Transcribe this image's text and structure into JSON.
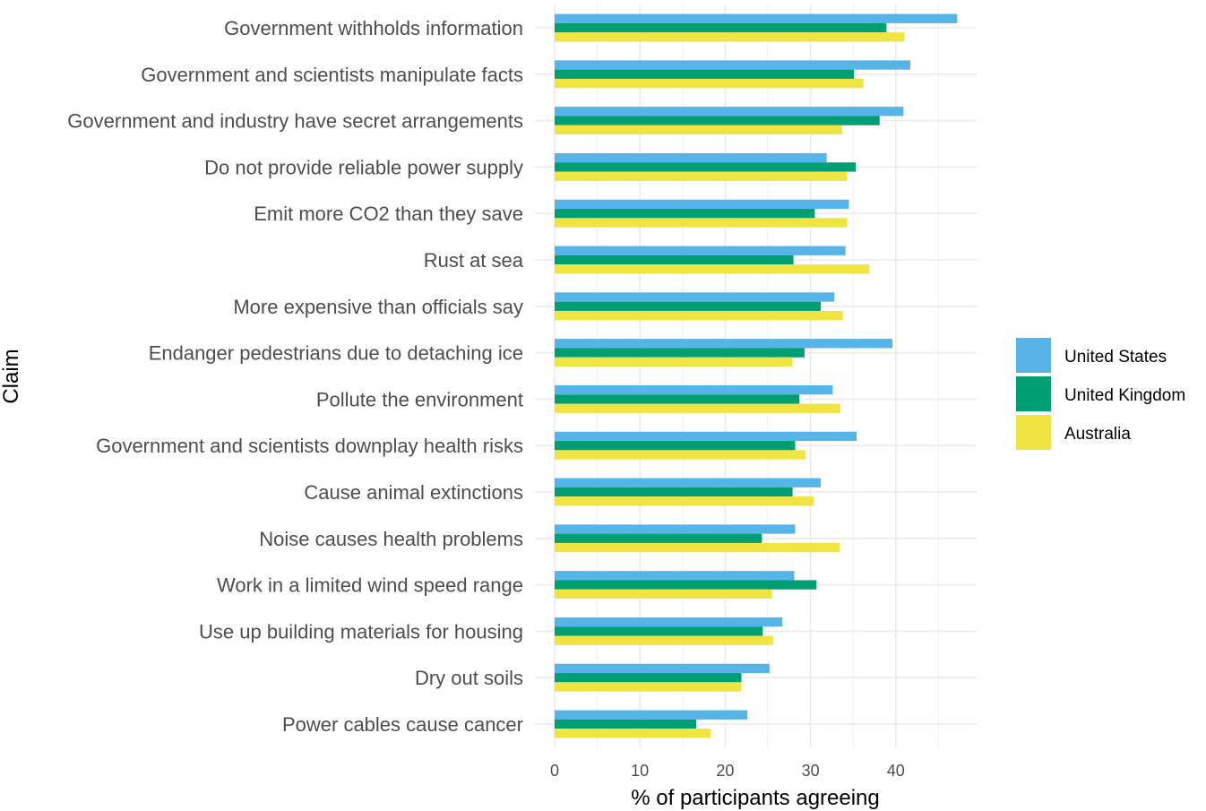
{
  "chart_data": {
    "type": "bar",
    "orientation": "horizontal",
    "xlabel": "% of participants agreeing",
    "ylabel": "Claim",
    "xlim": [
      0,
      49.5
    ],
    "x_ticks": [
      "0",
      "10",
      "20",
      "30",
      "40"
    ],
    "categories": [
      "Government withholds information",
      "Government and scientists manipulate facts",
      "Government and industry have secret arrangements",
      "Do not provide reliable power supply",
      "Emit more CO2 than they save",
      "Rust at sea",
      "More expensive than officials say",
      "Endanger pedestrians due to detaching ice",
      "Pollute the environment",
      "Government and scientists downplay health risks",
      "Cause animal extinctions",
      "Noise causes health problems",
      "Work in a limited wind speed range",
      "Use up building materials for housing",
      "Dry out soils",
      "Power cables cause cancer"
    ],
    "series": [
      {
        "name": "United States",
        "color": "#56B4E9",
        "values": [
          47.2,
          41.7,
          40.9,
          31.9,
          34.5,
          34.1,
          32.8,
          39.6,
          32.6,
          35.4,
          31.2,
          28.2,
          28.1,
          26.7,
          25.2,
          22.6
        ]
      },
      {
        "name": "United Kingdom",
        "color": "#009E73",
        "values": [
          38.9,
          35.1,
          38.1,
          35.3,
          30.5,
          28.0,
          31.2,
          29.3,
          28.7,
          28.2,
          27.9,
          24.3,
          30.7,
          24.4,
          21.9,
          16.6
        ]
      },
      {
        "name": "Australia",
        "color": "#F0E442",
        "values": [
          41.0,
          36.2,
          33.7,
          34.3,
          34.3,
          36.9,
          33.8,
          27.9,
          33.5,
          29.4,
          30.4,
          33.4,
          25.5,
          25.6,
          21.9,
          18.3
        ]
      }
    ],
    "legend_position": "right",
    "grid": true
  }
}
